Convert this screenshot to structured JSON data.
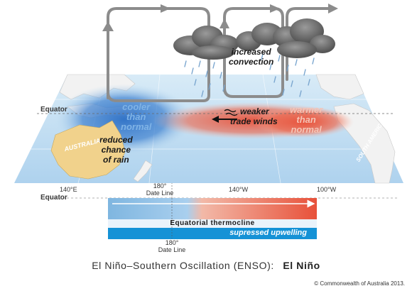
{
  "colors": {
    "ocean": "#bcdaf0",
    "cool": "#2c6fc5",
    "warm": "#e8513a",
    "land": "#f2f2f2",
    "reduced_rain_land": "#f1d28c",
    "circulation_arrow": "#8c8c8c",
    "upwelling_bar": "#1592d6",
    "thermocline_band": "#eaf3fb"
  },
  "icons": [
    "cloud-icon",
    "rain-icon",
    "circulation-arrow-icon",
    "trade-wind-arrow-icon"
  ],
  "labels": {
    "increased_convection": [
      "increased",
      "convection"
    ],
    "cooler_than_normal": [
      "cooler",
      "than",
      "normal"
    ],
    "warmer_than_normal": [
      "warmer",
      "than",
      "normal"
    ],
    "weaker_trade_winds": [
      "weaker",
      "trade winds"
    ],
    "reduced_chance_of_rain": [
      "reduced",
      "chance",
      "of rain"
    ],
    "australia": "AUSTRALIA",
    "south_america": "SOUTH AMERICA",
    "equator": "Equator",
    "equator_section": "Equator",
    "equatorial_thermocline": "Equatorial thermocline",
    "suppressed_upwelling": "supressed upwelling"
  },
  "longitudes": [
    {
      "value": "140°E"
    },
    {
      "value": "180°",
      "sub": "Date Line"
    },
    {
      "value": "140°W"
    },
    {
      "value": "100°W"
    }
  ],
  "section_longitude": {
    "value": "180°",
    "sub": "Date Line"
  },
  "caption": {
    "prefix": "El Niño–Southern Oscillation (ENSO):",
    "phase": "El Niño"
  },
  "copyright": "© Commonwealth of Australia 2013."
}
